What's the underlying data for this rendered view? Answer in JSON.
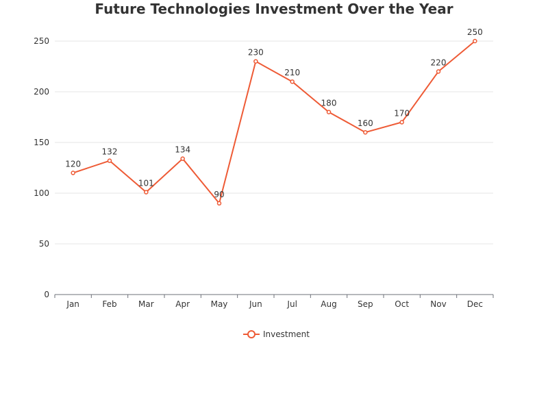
{
  "chart_data": {
    "type": "line",
    "title": "Future Technologies Investment Over the Year",
    "categories": [
      "Jan",
      "Feb",
      "Mar",
      "Apr",
      "May",
      "Jun",
      "Jul",
      "Aug",
      "Sep",
      "Oct",
      "Nov",
      "Dec"
    ],
    "series": [
      {
        "name": "Investment",
        "values": [
          120,
          132,
          101,
          134,
          90,
          230,
          210,
          180,
          160,
          170,
          220,
          250
        ],
        "color": "#ee5a35"
      }
    ],
    "ylim": [
      0,
      250
    ],
    "yticks": [
      0,
      50,
      100,
      150,
      200,
      250
    ],
    "grid": true,
    "data_labels": true,
    "legend_position": "bottom-center"
  }
}
